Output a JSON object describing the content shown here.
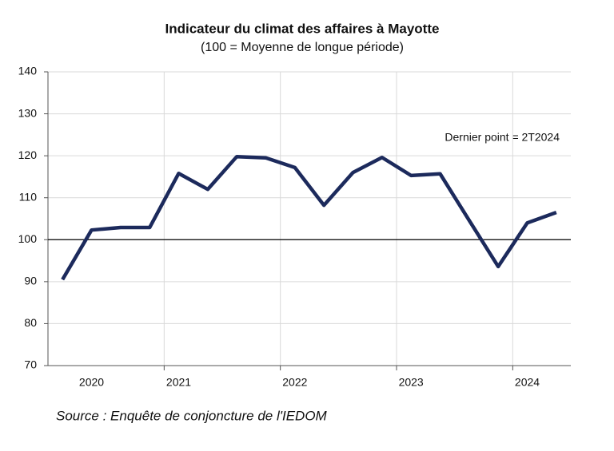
{
  "chart_data": {
    "type": "line",
    "title": "Indicateur du climat des affaires à Mayotte",
    "subtitle": "(100 = Moyenne de longue période)",
    "annotation": "Dernier point  = 2T2024",
    "source": "Source : Enquête de conjoncture de l'IEDOM",
    "categories": [
      null,
      "2020",
      null,
      null,
      "2021",
      null,
      null,
      null,
      "2022",
      null,
      null,
      null,
      "2023",
      null,
      null,
      null,
      "2024",
      null
    ],
    "series": [
      {
        "color": "#1c2a5c",
        "values": [
          90.5,
          102.3,
          102.9,
          102.9,
          115.8,
          112.0,
          119.8,
          119.5,
          117.2,
          108.2,
          116.0,
          119.6,
          115.3,
          115.7,
          104.6,
          93.6,
          104.0,
          106.5
        ]
      }
    ],
    "ylim": [
      70,
      140
    ],
    "yticks": [
      70,
      80,
      90,
      100,
      110,
      120,
      130,
      140
    ],
    "reference_line": 100,
    "grid": true
  }
}
